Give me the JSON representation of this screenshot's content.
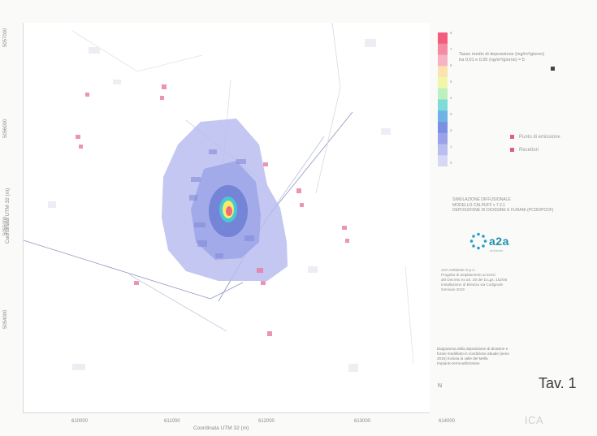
{
  "map": {
    "y_axis_label": "Coordinata UTM 32 (m)",
    "x_axis_label": "Coordinata UTM 32 (m)",
    "y_ticks": [
      "5057000",
      "5056000",
      "5055000",
      "5054000"
    ],
    "x_ticks": [
      "610000",
      "611000",
      "612000",
      "613000",
      "614000"
    ],
    "colors": {
      "plume_outer": "#b9bdf0",
      "plume_mid": "#9aa3e6",
      "plume_inner": "#6f7fd4",
      "hotspot_cyan": "#48c9d4",
      "hotspot_yellow": "#f3ee6a",
      "hotspot_red": "#f26b7a",
      "receptor": "#e77aa0",
      "road": "#9aa2c8"
    }
  },
  "legend": {
    "colorbar_colors": [
      "#f25d7e",
      "#f58aa3",
      "#f7b3c4",
      "#fbe3b0",
      "#f0f7a8",
      "#bdf0c0",
      "#7fdbd8",
      "#6fb3e6",
      "#7c90e2",
      "#9aa3ea",
      "#b9bdf0",
      "#d6d8f6"
    ],
    "colorbar_labels": [
      "8",
      "7",
      "6",
      "5",
      "4",
      "3",
      "2",
      "1",
      "0"
    ],
    "title_lines": [
      "Tasso medio di deposizione (mg/m²/giorno)",
      "tra 0,01 e 0,05 (ng/m²/giorno) = 5"
    ],
    "items": [
      {
        "label": "Punto di emissione",
        "color": "#e35a84"
      },
      {
        "label": "Recettori",
        "color": "#e35a84"
      }
    ]
  },
  "meta_lines": [
    "SIMULAZIONE DIFFUSIONALE",
    "MODELLO CALPUFF v 7.2.1",
    "DEPOSIZIONE DI DIOSSINE E FURANI (PCDD/PCDF)"
  ],
  "logo": {
    "text": "a2a",
    "sub": "ambiente"
  },
  "company_lines": [
    "A2A Ambiente S.p.A.",
    "Progetto di ampliamento ai sensi",
    "del Decreto ex art. 29 del D.Lgs. 152/06",
    "Installazione di Brescia via Codignole",
    "Gennaio 2019"
  ],
  "caption_lines": [
    "Diagramma della deposizione di diossine e",
    "furani modellato in condizione attuale (anno",
    "2016) inclusa la valle del Mella",
    "Impianto termoutilizzatore"
  ],
  "north": "N",
  "tav_label": "Tav. 1",
  "ica_label": "ICA"
}
